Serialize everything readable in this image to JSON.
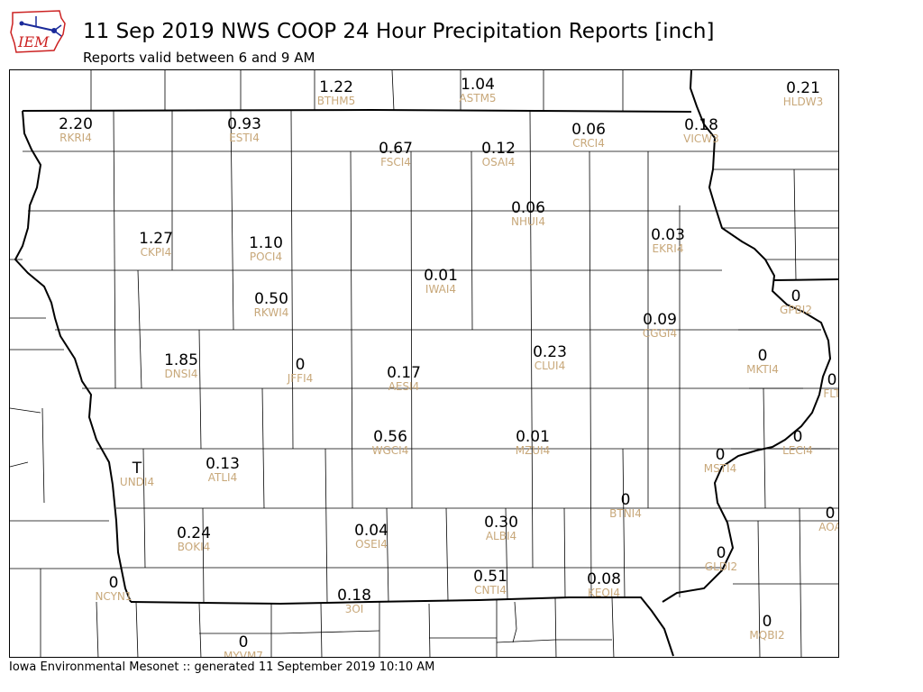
{
  "title": "11 Sep 2019 NWS COOP 24 Hour Precipitation Reports [inch]",
  "subtitle": "Reports valid between 6 and 9 AM",
  "footer": "Iowa Environmental Mesonet :: generated 11 September 2019 10:10 AM",
  "logo_text": "IEM",
  "colors": {
    "value": "#000000",
    "station": "#c8a87a",
    "logo_red": "#cc2222",
    "logo_blue": "#1a2a9a"
  },
  "stations": [
    {
      "id": "BTHM5",
      "value": "1.22"
    },
    {
      "id": "ASTM5",
      "value": "1.04"
    },
    {
      "id": "HLDW3",
      "value": "0.21"
    },
    {
      "id": "RKRI4",
      "value": "2.20"
    },
    {
      "id": "ESTI4",
      "value": "0.93"
    },
    {
      "id": "FSCI4",
      "value": "0.67"
    },
    {
      "id": "OSAI4",
      "value": "0.12"
    },
    {
      "id": "CRCI4",
      "value": "0.06"
    },
    {
      "id": "VICW3",
      "value": "0.18"
    },
    {
      "id": "NHUI4",
      "value": "0.06"
    },
    {
      "id": "CKPI4",
      "value": "1.27"
    },
    {
      "id": "POCI4",
      "value": "1.10"
    },
    {
      "id": "EKRI4",
      "value": "0.03"
    },
    {
      "id": "IWAI4",
      "value": "0.01"
    },
    {
      "id": "RKWI4",
      "value": "0.50"
    },
    {
      "id": "GPBI2",
      "value": "0"
    },
    {
      "id": "CGGI4",
      "value": "0.09"
    },
    {
      "id": "DNSI4",
      "value": "1.85"
    },
    {
      "id": "JFFI4",
      "value": "0"
    },
    {
      "id": "AESI4",
      "value": "0.17"
    },
    {
      "id": "CLUI4",
      "value": "0.23"
    },
    {
      "id": "MKTI4",
      "value": "0"
    },
    {
      "id": "FLT",
      "value": "0"
    },
    {
      "id": "WGCI4",
      "value": "0.56"
    },
    {
      "id": "MZUI4",
      "value": "0.01"
    },
    {
      "id": "LECI4",
      "value": "0"
    },
    {
      "id": "UNDI4",
      "value": "T"
    },
    {
      "id": "ATLI4",
      "value": "0.13"
    },
    {
      "id": "MSTI4",
      "value": "0"
    },
    {
      "id": "BTNI4",
      "value": "0"
    },
    {
      "id": "AOA",
      "value": "0"
    },
    {
      "id": "BOKI4",
      "value": "0.24"
    },
    {
      "id": "OSEI4",
      "value": "0.04"
    },
    {
      "id": "ALBI4",
      "value": "0.30"
    },
    {
      "id": "GLDI2",
      "value": "0"
    },
    {
      "id": "NCYN1",
      "value": "0"
    },
    {
      "id": "CNTI4",
      "value": "0.51"
    },
    {
      "id": "KEOI4",
      "value": "0.08"
    },
    {
      "id": "3OI",
      "value": "0.18"
    },
    {
      "id": "MQBI2",
      "value": "0"
    },
    {
      "id": "MYVM7",
      "value": "0"
    }
  ]
}
